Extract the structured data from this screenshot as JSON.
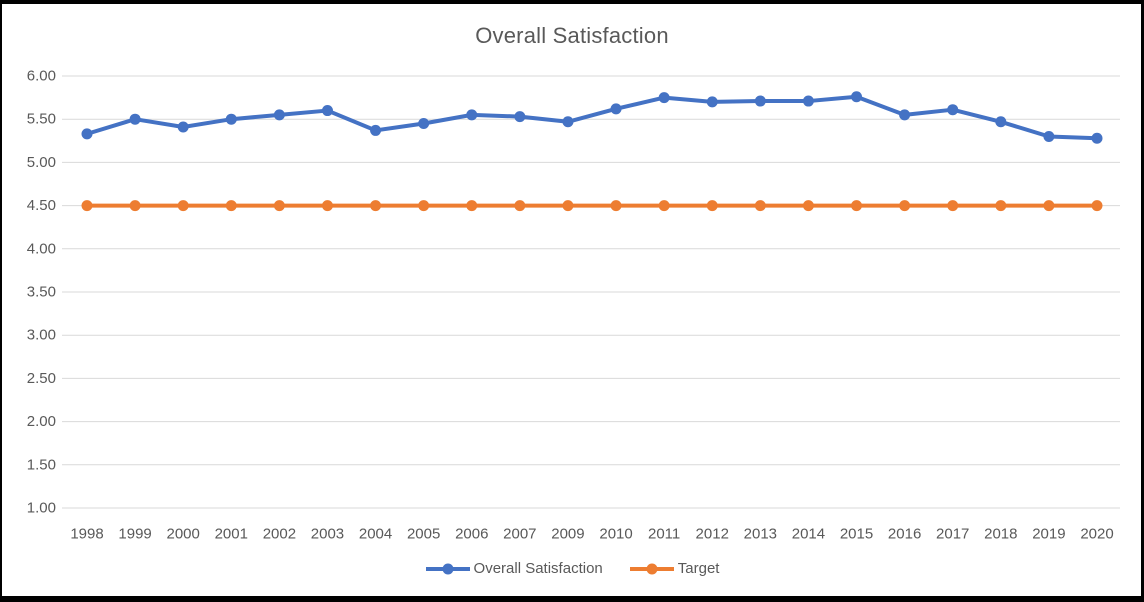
{
  "window": {
    "background": "#FFFFFF",
    "border_color": "#000000"
  },
  "chart_data": {
    "type": "line",
    "title": "Overall Satisfaction",
    "xlabel": "",
    "ylabel": "",
    "categories": [
      "1998",
      "1999",
      "2000",
      "2001",
      "2002",
      "2003",
      "2004",
      "2005",
      "2006",
      "2007",
      "2009",
      "2010",
      "2011",
      "2012",
      "2013",
      "2014",
      "2015",
      "2016",
      "2017",
      "2018",
      "2019",
      "2020"
    ],
    "series": [
      {
        "name": "Overall Satisfaction",
        "color": "#4472C4",
        "values": [
          5.33,
          5.5,
          5.41,
          5.5,
          5.55,
          5.6,
          5.37,
          5.45,
          5.55,
          5.53,
          5.47,
          5.62,
          5.75,
          5.7,
          5.71,
          5.71,
          5.76,
          5.55,
          5.61,
          5.47,
          5.3,
          5.28
        ]
      },
      {
        "name": "Target",
        "color": "#ED7D31",
        "values": [
          4.5,
          4.5,
          4.5,
          4.5,
          4.5,
          4.5,
          4.5,
          4.5,
          4.5,
          4.5,
          4.5,
          4.5,
          4.5,
          4.5,
          4.5,
          4.5,
          4.5,
          4.5,
          4.5,
          4.5,
          4.5,
          4.5
        ]
      }
    ],
    "ylim": [
      1.0,
      6.0
    ],
    "ytick_step": 0.5,
    "ytick_labels": [
      "1.00",
      "1.50",
      "2.00",
      "2.50",
      "3.00",
      "3.50",
      "4.00",
      "4.50",
      "5.00",
      "5.50",
      "6.00"
    ],
    "grid": true,
    "legend_position": "bottom",
    "styles": {
      "grid_color": "#D9D9D9",
      "tick_label_color": "#595959",
      "title_color": "#595959",
      "legend_label_color": "#595959"
    }
  }
}
